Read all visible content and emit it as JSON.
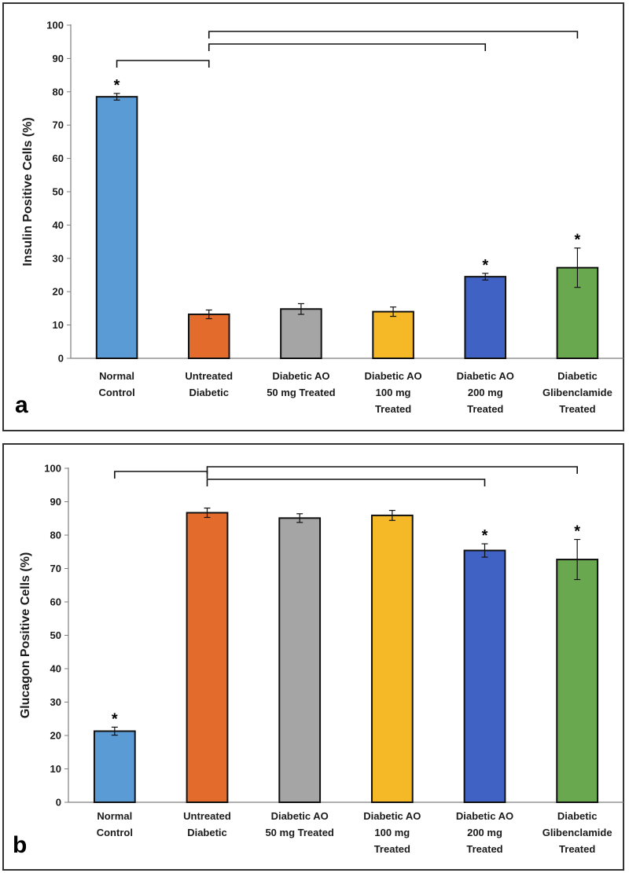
{
  "chart_data": [
    {
      "type": "bar",
      "panel_label": "a",
      "ylabel": "Insulin Positive Cells (%)",
      "ylim": [
        0,
        100
      ],
      "yticks": [
        0,
        10,
        20,
        30,
        40,
        50,
        60,
        70,
        80,
        90,
        100
      ],
      "categories": [
        [
          "Normal",
          "Control"
        ],
        [
          "Untreated",
          "Diabetic"
        ],
        [
          "Diabetic AO",
          "50 mg Treated"
        ],
        [
          "Diabetic AO",
          "100 mg",
          "Treated"
        ],
        [
          "Diabetic AO",
          "200 mg",
          "Treated"
        ],
        [
          "Diabetic",
          "Glibenclamide",
          "Treated"
        ]
      ],
      "values": [
        78.5,
        13.2,
        14.8,
        14.0,
        24.5,
        27.2
      ],
      "errors": [
        1.0,
        1.3,
        1.6,
        1.4,
        1.0,
        5.9
      ],
      "colors": [
        "#5b9bd5",
        "#e36c2c",
        "#a5a5a5",
        "#f5b827",
        "#3f62c4",
        "#6aa84f"
      ],
      "significance": [
        "*",
        "",
        "",
        "",
        "*",
        "*"
      ],
      "brackets": [
        [
          0,
          1
        ],
        [
          1,
          4
        ],
        [
          1,
          5
        ]
      ],
      "grid": false
    },
    {
      "type": "bar",
      "panel_label": "b",
      "ylabel": "Glucagon Positive Cells (%)",
      "ylim": [
        0,
        100
      ],
      "yticks": [
        0,
        10,
        20,
        30,
        40,
        50,
        60,
        70,
        80,
        90,
        100
      ],
      "categories": [
        [
          "Normal",
          "Control"
        ],
        [
          "Untreated",
          "Diabetic"
        ],
        [
          "Diabetic AO",
          "50 mg Treated"
        ],
        [
          "Diabetic AO",
          "100 mg",
          "Treated"
        ],
        [
          "Diabetic AO",
          "200 mg",
          "Treated"
        ],
        [
          "Diabetic",
          "Glibenclamide",
          "Treated"
        ]
      ],
      "values": [
        21.3,
        86.7,
        85.1,
        85.9,
        75.4,
        72.7
      ],
      "errors": [
        1.2,
        1.4,
        1.3,
        1.5,
        2.0,
        6.0
      ],
      "colors": [
        "#5b9bd5",
        "#e36c2c",
        "#a5a5a5",
        "#f5b827",
        "#3f62c4",
        "#6aa84f"
      ],
      "significance": [
        "*",
        "",
        "",
        "",
        "*",
        "*"
      ],
      "brackets": [
        [
          0,
          1
        ],
        [
          1,
          4
        ],
        [
          1,
          5
        ]
      ],
      "grid": false
    }
  ]
}
